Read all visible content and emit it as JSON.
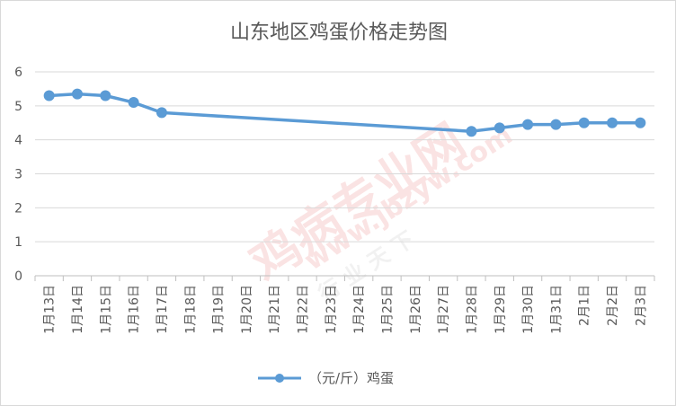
{
  "chart_data": {
    "type": "line",
    "title": "山东地区鸡蛋价格走势图",
    "categories": [
      "1月13日",
      "1月14日",
      "1月15日",
      "1月16日",
      "1月17日",
      "1月18日",
      "1月19日",
      "1月20日",
      "1月21日",
      "1月22日",
      "1月23日",
      "1月24日",
      "1月25日",
      "1月26日",
      "1月27日",
      "1月28日",
      "1月29日",
      "1月30日",
      "1月31日",
      "2月1日",
      "2月2日",
      "2月3日"
    ],
    "series": [
      {
        "name": "（元/斤）鸡蛋",
        "values": [
          5.3,
          5.35,
          5.3,
          5.1,
          4.8,
          null,
          null,
          null,
          null,
          null,
          null,
          null,
          null,
          null,
          null,
          4.25,
          4.35,
          4.45,
          4.45,
          4.5,
          4.5,
          4.5
        ],
        "color": "#5b9bd5"
      }
    ],
    "y_ticks": [
      "0",
      "1",
      "2",
      "3",
      "4",
      "5",
      "6"
    ],
    "ylim": [
      0,
      6
    ],
    "grid": true,
    "legend": "bottom",
    "connect_gaps": true
  },
  "watermark": {
    "large": "鸡病专业网",
    "url": "www.jbzyw.com",
    "small": "行 业 天 下"
  }
}
